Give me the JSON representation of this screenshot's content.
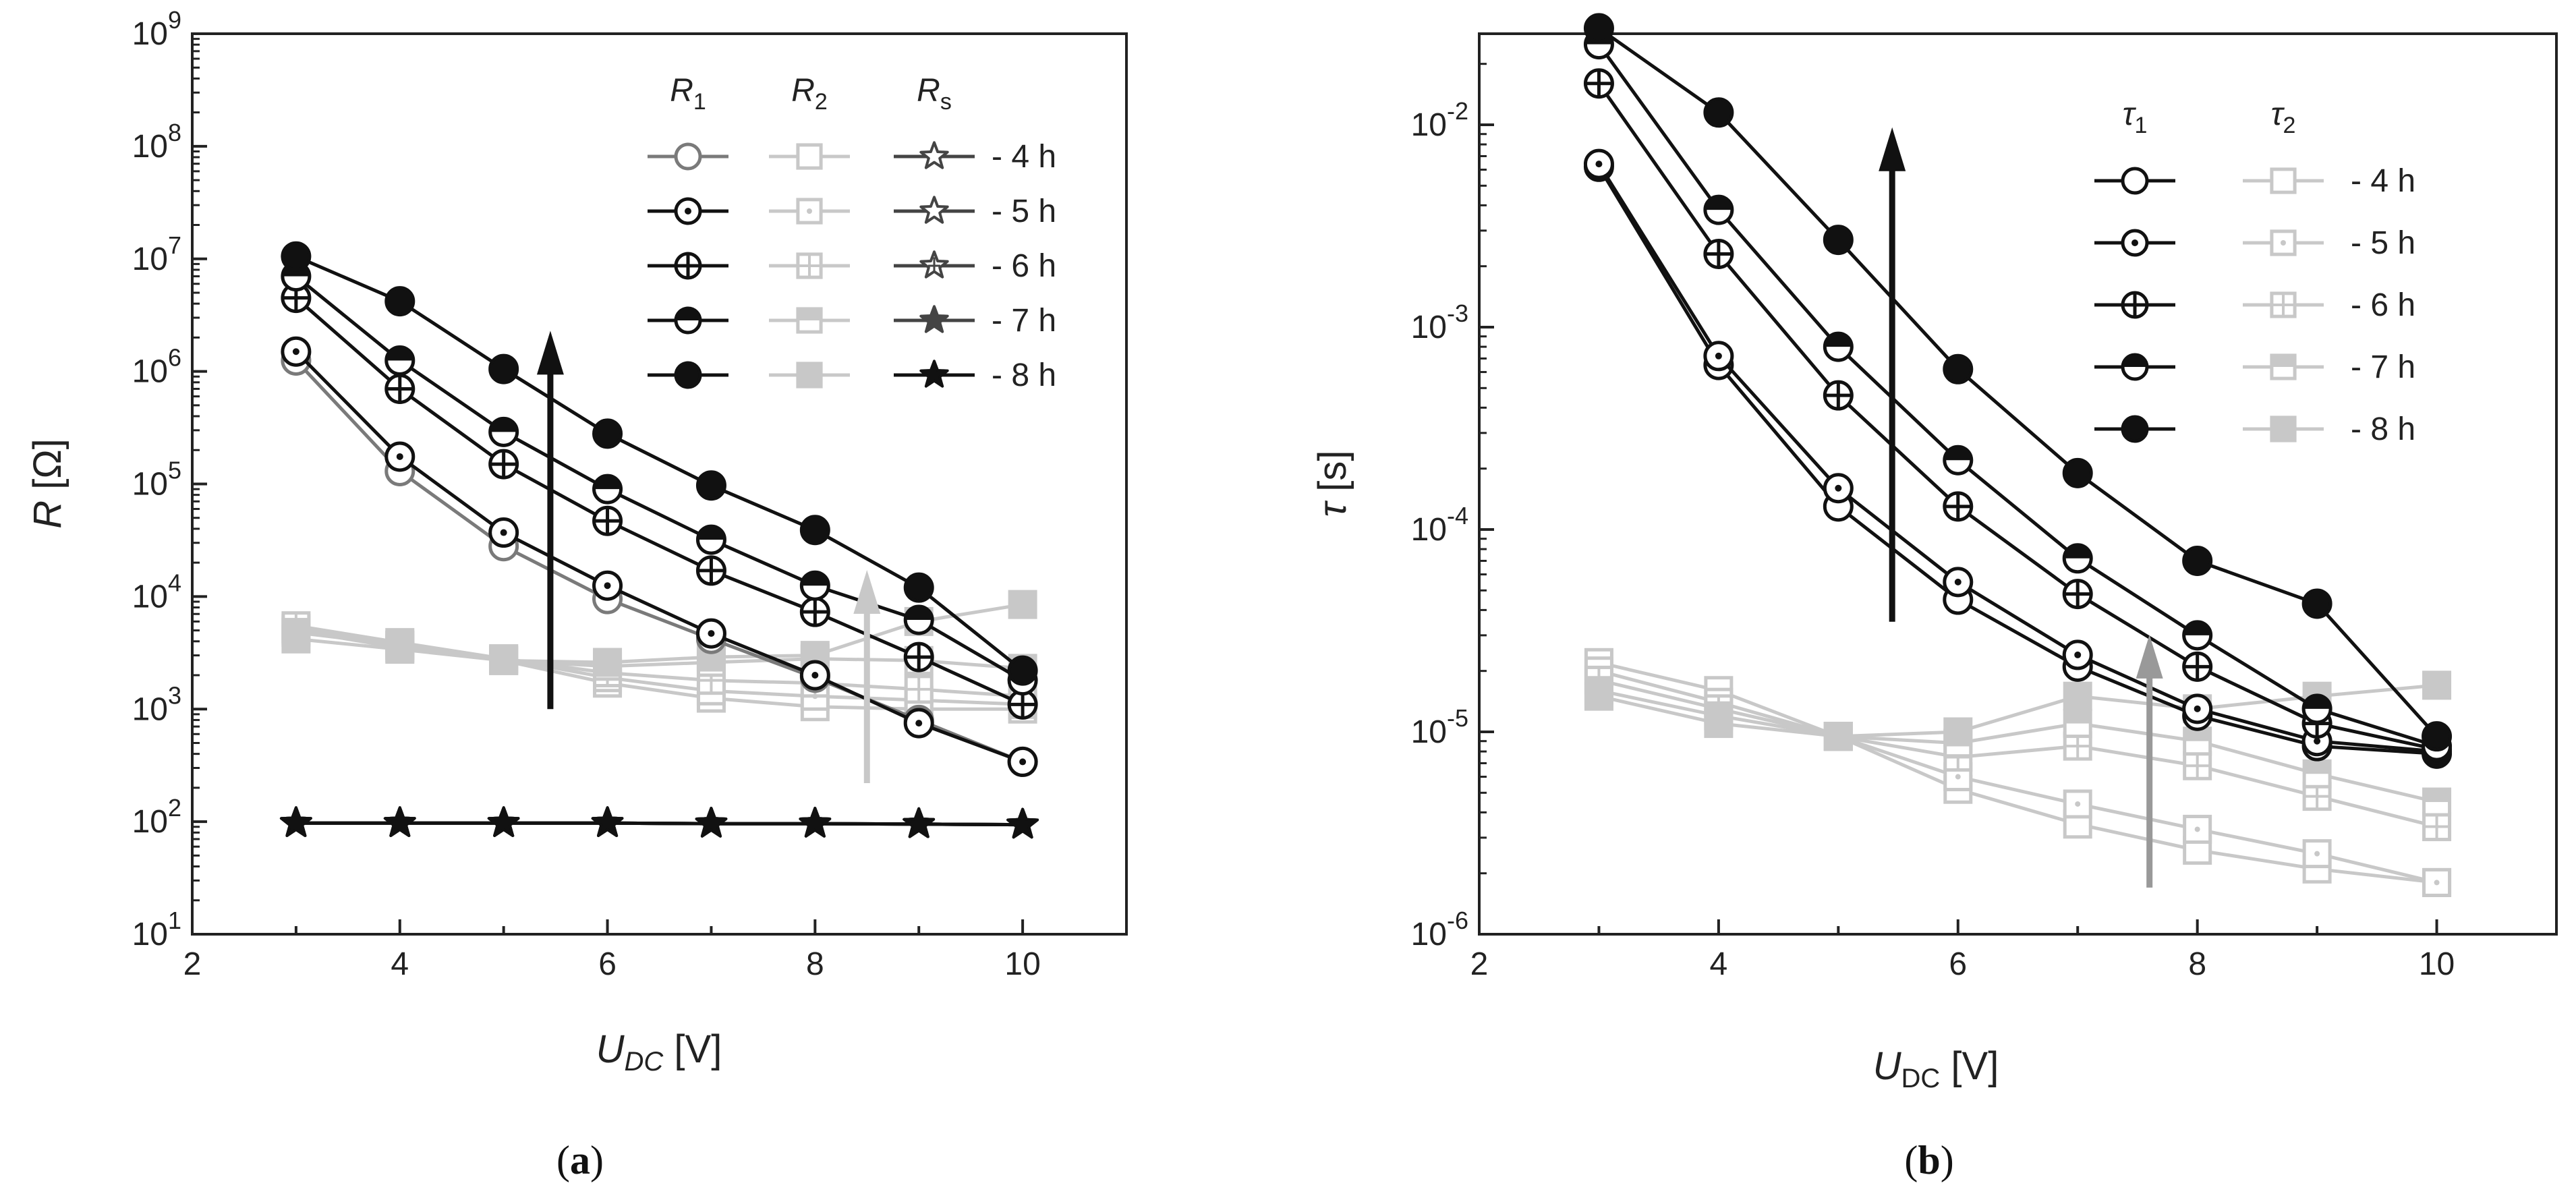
{
  "chart_data": [
    {
      "type": "scatter",
      "panel": "a",
      "caption_letter": "a",
      "xlabel_main": "U",
      "xlabel_sub": "DC",
      "xlabel_unit": " [V]",
      "ylabel_main": "R",
      "ylabel_unit": " [Ω]",
      "xlim": [
        2,
        11
      ],
      "ylim_exp": [
        1,
        9
      ],
      "yscale": "log",
      "x_ticks": [
        "2",
        "4",
        "6",
        "8",
        "10"
      ],
      "y_ticks_exp": [
        "1",
        "2",
        "3",
        "4",
        "5",
        "6",
        "7",
        "8",
        "9"
      ],
      "legend_columns": [
        {
          "main": "R",
          "sub": "1"
        },
        {
          "main": "R",
          "sub": "2"
        },
        {
          "main": "R",
          "sub": "s"
        }
      ],
      "legend_rows": [
        "- 4 h",
        "- 5 h",
        "- 6 h",
        "- 7 h",
        "- 8 h"
      ],
      "x": [
        3,
        4,
        5,
        6,
        7,
        8,
        9,
        10
      ],
      "series": [
        {
          "name": "R1 - 4 h",
          "marker": "circle-open",
          "color": "#7a7a7a",
          "values": [
            1250000,
            130000,
            28000,
            9500,
            4200,
            1900,
            800,
            340
          ]
        },
        {
          "name": "R1 - 5 h",
          "marker": "circle-dot",
          "color": "#111111",
          "values": [
            1500000,
            175000,
            37000,
            12500,
            4700,
            2000,
            750,
            340
          ]
        },
        {
          "name": "R1 - 6 h",
          "marker": "circle-plus",
          "color": "#111111",
          "values": [
            4500000,
            700000,
            150000,
            47000,
            17000,
            7300,
            2900,
            1100
          ]
        },
        {
          "name": "R1 - 7 h",
          "marker": "circle-half",
          "color": "#111111",
          "values": [
            7000000,
            1250000,
            290000,
            90000,
            32000,
            12500,
            6200,
            1800
          ]
        },
        {
          "name": "R1 - 8 h",
          "marker": "circle-filled",
          "color": "#111111",
          "values": [
            10500000,
            4200000,
            1050000,
            280000,
            97000,
            39000,
            12000,
            2200
          ]
        },
        {
          "name": "R2 - 4 h",
          "marker": "square-open",
          "color": "#c8c8c8",
          "values": [
            5000,
            3500,
            2700,
            1700,
            1250,
            1050,
            1000,
            1000
          ]
        },
        {
          "name": "R2 - 5 h",
          "marker": "square-dot",
          "color": "#c8c8c8",
          "values": [
            5200,
            3700,
            2800,
            1900,
            1450,
            1300,
            1200,
            1100
          ]
        },
        {
          "name": "R2 - 6 h",
          "marker": "square-plus",
          "color": "#c8c8c8",
          "values": [
            5500,
            3900,
            2800,
            2100,
            1800,
            1700,
            1500,
            1300
          ]
        },
        {
          "name": "R2 - 7 h",
          "marker": "square-half",
          "color": "#c8c8c8",
          "values": [
            4800,
            3700,
            2700,
            2400,
            2600,
            2800,
            2700,
            2300
          ]
        },
        {
          "name": "R2 - 8 h",
          "marker": "square-filled",
          "color": "#c8c8c8",
          "values": [
            4200,
            3400,
            2700,
            2600,
            2900,
            3000,
            6000,
            8500
          ]
        },
        {
          "name": "Rs - 4 h",
          "marker": "star-open",
          "color": "#444444",
          "values": [
            97,
            97,
            97,
            97,
            96,
            96,
            95,
            94
          ]
        },
        {
          "name": "Rs - 5 h",
          "marker": "star-open",
          "color": "#444444",
          "values": [
            97,
            97,
            97,
            97,
            96,
            96,
            95,
            94
          ]
        },
        {
          "name": "Rs - 6 h",
          "marker": "star-plus",
          "color": "#444444",
          "values": [
            97,
            97,
            97,
            97,
            96,
            96,
            95,
            94
          ]
        },
        {
          "name": "Rs - 7 h",
          "marker": "star-filled",
          "color": "#444444",
          "values": [
            97,
            97,
            97,
            97,
            96,
            96,
            95,
            94
          ]
        },
        {
          "name": "Rs - 8 h",
          "marker": "star-filled",
          "color": "#111111",
          "values": [
            97,
            97,
            97,
            97,
            96,
            96,
            95,
            94
          ]
        }
      ],
      "arrows": [
        {
          "x": 5.45,
          "from": 1000,
          "to": 2000000,
          "color": "#111111"
        },
        {
          "x": 8.5,
          "from": 220,
          "to": 15000,
          "color": "#c8c8c8"
        }
      ]
    },
    {
      "type": "scatter",
      "panel": "b",
      "caption_letter": "b",
      "xlabel_main": "U",
      "xlabel_sub": "DC",
      "xlabel_unit": " [V]",
      "ylabel_main": "τ",
      "ylabel_unit": " [s]",
      "xlim": [
        2,
        11
      ],
      "ylim_exp": [
        -6,
        -1.55
      ],
      "yscale": "log",
      "x_ticks": [
        "2",
        "4",
        "6",
        "8",
        "10"
      ],
      "y_ticks_exp": [
        "-6",
        "-5",
        "-4",
        "-3",
        "-2"
      ],
      "legend_columns": [
        {
          "main": "τ",
          "sub": "1"
        },
        {
          "main": "τ",
          "sub": "2"
        }
      ],
      "legend_rows": [
        "- 4 h",
        "- 5 h",
        "- 6 h",
        "- 7 h",
        "- 8 h"
      ],
      "x": [
        3,
        4,
        5,
        6,
        7,
        8,
        9,
        10
      ],
      "series": [
        {
          "name": "tau1 - 4 h",
          "marker": "circle-open",
          "color": "#111111",
          "values": [
            0.0062,
            0.00065,
            0.00013,
            4.5e-05,
            2.1e-05,
            1.2e-05,
            8.5e-06,
            7.8e-06
          ]
        },
        {
          "name": "tau1 - 5 h",
          "marker": "circle-dot",
          "color": "#111111",
          "values": [
            0.0064,
            0.00072,
            0.00016,
            5.5e-05,
            2.4e-05,
            1.3e-05,
            9e-06,
            8e-06
          ]
        },
        {
          "name": "tau1 - 6 h",
          "marker": "circle-plus",
          "color": "#111111",
          "values": [
            0.016,
            0.0023,
            0.00046,
            0.00013,
            4.8e-05,
            2.1e-05,
            1.1e-05,
            8.2e-06
          ]
        },
        {
          "name": "tau1 - 7 h",
          "marker": "circle-half",
          "color": "#111111",
          "values": [
            0.025,
            0.0038,
            0.0008,
            0.00022,
            7.2e-05,
            3e-05,
            1.3e-05,
            8.5e-06
          ]
        },
        {
          "name": "tau1 - 8 h",
          "marker": "circle-filled",
          "color": "#111111",
          "values": [
            0.03,
            0.0115,
            0.0027,
            0.00062,
            0.00019,
            7e-05,
            4.3e-05,
            9.5e-06
          ]
        },
        {
          "name": "tau2 - 4 h",
          "marker": "square-open",
          "color": "#c8c8c8",
          "values": [
            2.2e-05,
            1.6e-05,
            9.5e-06,
            5.2e-06,
            3.5e-06,
            2.6e-06,
            2.1e-06,
            1.8e-06
          ]
        },
        {
          "name": "tau2 - 5 h",
          "marker": "square-dot",
          "color": "#c8c8c8",
          "values": [
            2e-05,
            1.4e-05,
            9.5e-06,
            6e-06,
            4.4e-06,
            3.3e-06,
            2.5e-06,
            1.8e-06
          ]
        },
        {
          "name": "tau2 - 6 h",
          "marker": "square-plus",
          "color": "#c8c8c8",
          "values": [
            1.8e-05,
            1.3e-05,
            9.5e-06,
            7.5e-06,
            8.5e-06,
            6.8e-06,
            4.8e-06,
            3.4e-06
          ]
        },
        {
          "name": "tau2 - 7 h",
          "marker": "square-half",
          "color": "#c8c8c8",
          "values": [
            1.6e-05,
            1.2e-05,
            9.5e-06,
            8.8e-06,
            1.1e-05,
            9e-06,
            6.2e-06,
            4.5e-06
          ]
        },
        {
          "name": "tau2 - 8 h",
          "marker": "square-filled",
          "color": "#c8c8c8",
          "values": [
            1.5e-05,
            1.1e-05,
            9.5e-06,
            1e-05,
            1.5e-05,
            1.3e-05,
            1.5e-05,
            1.7e-05
          ]
        }
      ],
      "arrows": [
        {
          "x": 5.45,
          "from": 3.5e-05,
          "to": 0.009,
          "color": "#111111"
        },
        {
          "x": 7.6,
          "from": 1.7e-06,
          "to": 2.8e-05,
          "color": "#999999"
        }
      ]
    }
  ]
}
